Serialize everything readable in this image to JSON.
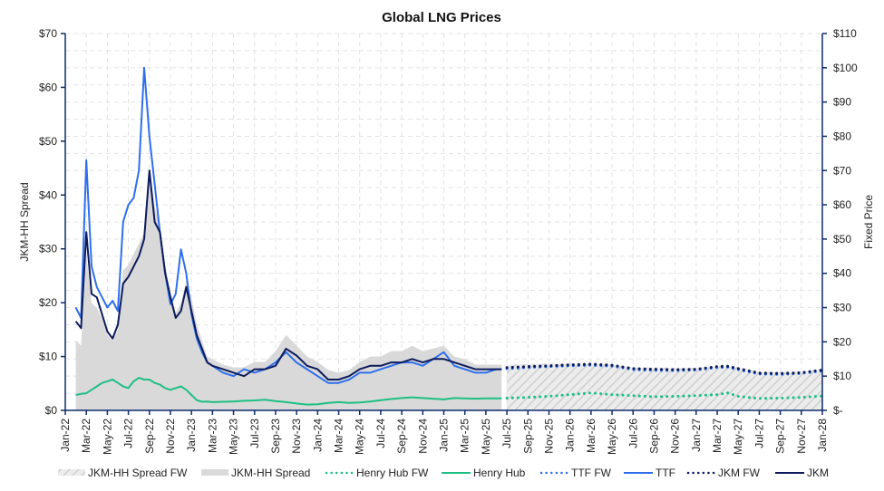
{
  "chart_data": {
    "type": "line",
    "title": "Global LNG Prices",
    "ylabel_left": "JKM-HH Spread",
    "ylabel_right": "Fixed Price",
    "ylim_left": [
      0,
      70
    ],
    "ylim_right": [
      0,
      110
    ],
    "yticks_left": [
      "$0",
      "$10",
      "$20",
      "$30",
      "$40",
      "$50",
      "$60",
      "$70"
    ],
    "yticks_right": [
      "$-",
      "$10",
      "$20",
      "$30",
      "$40",
      "$50",
      "$60",
      "$70",
      "$80",
      "$90",
      "$100",
      "$110"
    ],
    "xticks": [
      "Jan-22",
      "Mar-22",
      "May-22",
      "Jul-22",
      "Sep-22",
      "Nov-22",
      "Jan-23",
      "Mar-23",
      "May-23",
      "Jul-23",
      "Sep-23",
      "Nov-23",
      "Jan-24",
      "Mar-24",
      "May-24",
      "Jul-24",
      "Sep-24",
      "Nov-24",
      "Jan-25",
      "Mar-25",
      "May-25",
      "Jul-25",
      "Sep-25",
      "Nov-25",
      "Jan-26",
      "Mar-26",
      "May-26",
      "Jul-26",
      "Sep-26",
      "Nov-26",
      "Jan-27",
      "Mar-27",
      "May-27",
      "Jul-27",
      "Sep-27",
      "Nov-27",
      "Jan-28"
    ],
    "grid": true,
    "legend_position": "bottom",
    "legend": [
      "JKM-HH Spread FW",
      "JKM-HH Spread",
      "Henry Hub FW",
      "Henry Hub",
      "TTF FW",
      "TTF",
      "JKM FW",
      "JKM"
    ],
    "colors": {
      "spread": "#d9d9d9",
      "spread_fw_hatch": "#c8c8c8",
      "henry_hub": "#1dbf84",
      "ttf": "#2f6fed",
      "jkm": "#0d1b5c",
      "axis": "#0d2a6b",
      "grid": "#e3e3e3"
    },
    "x_months_from_jan22": [
      1,
      1.5,
      2,
      2.5,
      3,
      3.5,
      4,
      4.5,
      5,
      5.5,
      6,
      6.5,
      7,
      7.5,
      8,
      8.5,
      9,
      9.5,
      10,
      10.5,
      11,
      11.5,
      12,
      12.5,
      13,
      13.5,
      14,
      15,
      16,
      17,
      18,
      19,
      20,
      21,
      22,
      23,
      24,
      25,
      26,
      27,
      28,
      29,
      30,
      31,
      32,
      33,
      34,
      35,
      36,
      37,
      38,
      39,
      40,
      41,
      41.5
    ],
    "series": [
      {
        "name": "JKM",
        "axis": "right",
        "values": [
          26,
          24,
          52,
          34,
          33,
          28,
          23,
          21,
          25,
          37,
          39,
          42,
          45,
          50,
          70,
          55,
          52,
          40,
          33,
          27,
          29,
          36,
          29,
          22,
          18,
          14,
          13,
          12,
          11,
          10,
          12,
          12,
          13,
          18,
          16,
          13,
          12,
          9,
          9,
          10,
          12,
          13,
          13,
          14,
          14,
          15,
          14,
          15,
          15,
          14,
          13,
          12,
          12,
          12,
          12
        ]
      },
      {
        "name": "TTF",
        "axis": "right",
        "values": [
          30,
          27,
          73,
          42,
          36,
          33,
          30,
          32,
          29,
          55,
          60,
          62,
          70,
          100,
          80,
          66,
          52,
          40,
          31,
          34,
          47,
          40,
          28,
          21,
          17,
          14,
          13,
          11,
          10,
          12,
          11,
          12,
          14,
          17,
          14,
          12,
          10,
          8,
          8,
          9,
          11,
          11,
          12,
          13,
          14,
          14,
          13,
          15,
          17,
          13,
          12,
          11,
          11,
          12,
          12
        ]
      },
      {
        "name": "Henry Hub",
        "axis": "right",
        "values": [
          4.5,
          4.8,
          5,
          6,
          7,
          8,
          8.5,
          9,
          8,
          7,
          6.5,
          8.5,
          9.5,
          9,
          9,
          8,
          7.5,
          6.5,
          6,
          6.5,
          7,
          6,
          4.5,
          3,
          2.5,
          2.6,
          2.4,
          2.5,
          2.6,
          2.8,
          2.9,
          3.1,
          2.7,
          2.4,
          2.0,
          1.7,
          1.8,
          2.2,
          2.4,
          2.2,
          2.3,
          2.6,
          3.0,
          3.3,
          3.6,
          3.8,
          3.6,
          3.4,
          3.2,
          3.6,
          3.5,
          3.4,
          3.5,
          3.5,
          3.5
        ]
      },
      {
        "name": "JKM-HH Spread",
        "axis": "left",
        "values": [
          13,
          12,
          29,
          20,
          19,
          17,
          14,
          13,
          15,
          26,
          27,
          29,
          31,
          33,
          45,
          38,
          34,
          27,
          22,
          18,
          20,
          24,
          21,
          16,
          13,
          10,
          9.5,
          8.5,
          8,
          8,
          9,
          9,
          11,
          14,
          12,
          10,
          9,
          7.5,
          7,
          7.5,
          9,
          10,
          10,
          11,
          11,
          12,
          11,
          11.5,
          12,
          10,
          9.5,
          8.5,
          8.5,
          8.5,
          8.5
        ]
      },
      {
        "name": "JKM FW",
        "axis": "right",
        "x_months_from_jan22": [
          42,
          44,
          46,
          48,
          50,
          52,
          54,
          56,
          58,
          60,
          62,
          63,
          64,
          66,
          68,
          70,
          72
        ],
        "values": [
          12.5,
          12.8,
          13,
          13.3,
          13.5,
          13.2,
          12.2,
          12,
          11.9,
          12,
          12.8,
          12.9,
          12.2,
          10.9,
          10.8,
          11,
          11.8
        ]
      },
      {
        "name": "TTF FW",
        "axis": "right",
        "x_months_from_jan22": [
          42,
          44,
          46,
          48,
          50,
          52,
          54,
          56,
          58,
          60,
          62,
          63,
          64,
          66,
          68,
          70,
          72
        ],
        "values": [
          12.2,
          12.5,
          12.8,
          13,
          13.2,
          12.9,
          11.9,
          11.7,
          11.6,
          11.8,
          12.5,
          12.6,
          11.9,
          10.6,
          10.5,
          10.8,
          11.5
        ]
      },
      {
        "name": "Henry Hub FW",
        "axis": "right",
        "x_months_from_jan22": [
          42,
          44,
          46,
          48,
          50,
          52,
          54,
          56,
          58,
          60,
          62,
          63,
          64,
          66,
          68,
          70,
          72
        ],
        "values": [
          3.6,
          3.8,
          4.1,
          4.6,
          5.1,
          4.6,
          4.3,
          4.0,
          4.1,
          4.3,
          4.6,
          5.1,
          4.1,
          3.5,
          3.6,
          3.8,
          4.2
        ]
      },
      {
        "name": "JKM-HH Spread FW",
        "axis": "left",
        "x_months_from_jan22": [
          42,
          44,
          46,
          48,
          50,
          52,
          54,
          56,
          58,
          60,
          62,
          63,
          64,
          66,
          68,
          70,
          72
        ],
        "values": [
          8.5,
          8.6,
          8.7,
          8.7,
          8.6,
          8.5,
          8.0,
          8.0,
          7.9,
          7.9,
          8.2,
          8.2,
          8.1,
          7.2,
          7.1,
          7.2,
          7.6
        ]
      }
    ]
  }
}
